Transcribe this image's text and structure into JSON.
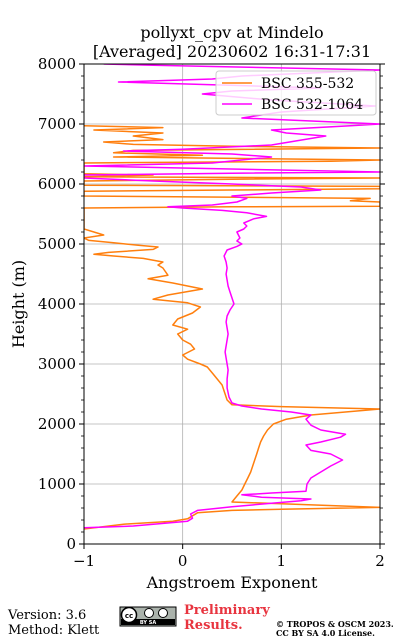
{
  "chart_data": {
    "type": "line",
    "title": [
      "pollyxt_cpv at Mindelo",
      "[Averaged] 20230602 16:31-17:31"
    ],
    "xlabel": "Angstroem Exponent",
    "ylabel": "Height (m)",
    "xlim": [
      -1,
      2
    ],
    "ylim": [
      0,
      8000
    ],
    "xticks": [
      -1,
      0,
      1,
      2
    ],
    "xtick_labels": [
      "−1",
      "0",
      "1",
      "2"
    ],
    "yticks": [
      0,
      1000,
      2000,
      3000,
      4000,
      5000,
      6000,
      7000,
      8000
    ],
    "ytick_labels": [
      "0",
      "1000",
      "2000",
      "3000",
      "4000",
      "5000",
      "6000",
      "7000",
      "8000"
    ],
    "grid": true,
    "legend_position": "top-right",
    "series": [
      {
        "name": "BSC 355-532",
        "color": "#ff7f0e",
        "points": [
          [
            -1.0,
            250
          ],
          [
            -0.6,
            330
          ],
          [
            -0.1,
            380
          ],
          [
            0.05,
            420
          ],
          [
            0.1,
            470
          ],
          [
            0.15,
            520
          ],
          [
            0.5,
            560
          ],
          [
            1.0,
            580
          ],
          [
            2.0,
            610
          ],
          [
            0.5,
            700
          ],
          [
            0.55,
            800
          ],
          [
            0.6,
            900
          ],
          [
            0.63,
            1000
          ],
          [
            0.66,
            1100
          ],
          [
            0.69,
            1200
          ],
          [
            0.71,
            1300
          ],
          [
            0.73,
            1400
          ],
          [
            0.75,
            1500
          ],
          [
            0.77,
            1600
          ],
          [
            0.79,
            1700
          ],
          [
            0.82,
            1800
          ],
          [
            0.86,
            1900
          ],
          [
            0.92,
            2000
          ],
          [
            1.05,
            2080
          ],
          [
            1.3,
            2150
          ],
          [
            2.0,
            2250
          ],
          [
            1.0,
            2290
          ],
          [
            0.5,
            2320
          ],
          [
            0.45,
            2400
          ],
          [
            0.42,
            2550
          ],
          [
            0.4,
            2650
          ],
          [
            0.35,
            2750
          ],
          [
            0.3,
            2850
          ],
          [
            0.25,
            2950
          ],
          [
            0.18,
            3000
          ],
          [
            0.05,
            3080
          ],
          [
            0.0,
            3150
          ],
          [
            0.12,
            3250
          ],
          [
            0.08,
            3330
          ],
          [
            0.0,
            3400
          ],
          [
            -0.05,
            3500
          ],
          [
            0.05,
            3580
          ],
          [
            -0.1,
            3650
          ],
          [
            -0.05,
            3750
          ],
          [
            0.1,
            3850
          ],
          [
            0.18,
            3950
          ],
          [
            0.05,
            4020
          ],
          [
            -0.3,
            4080
          ],
          [
            -0.15,
            4150
          ],
          [
            0.2,
            4250
          ],
          [
            -0.1,
            4350
          ],
          [
            -0.35,
            4420
          ],
          [
            -0.15,
            4480
          ],
          [
            -0.2,
            4600
          ],
          [
            -0.25,
            4650
          ],
          [
            -0.2,
            4700
          ],
          [
            -0.4,
            4760
          ],
          [
            -0.7,
            4800
          ],
          [
            -0.9,
            4830
          ],
          [
            -0.75,
            4860
          ],
          [
            -0.3,
            4910
          ],
          [
            -0.25,
            4950
          ],
          [
            -0.45,
            4980
          ],
          [
            -0.7,
            5020
          ],
          [
            -0.95,
            5060
          ],
          [
            -1.0,
            5100
          ],
          [
            -0.8,
            5150
          ],
          [
            -0.9,
            5200
          ],
          [
            -1.0,
            5250
          ],
          [
            -1.0,
            5600
          ],
          [
            0.5,
            5620
          ],
          [
            2.0,
            5630
          ],
          [
            2.0,
            5700
          ],
          [
            1.7,
            5720
          ],
          [
            1.9,
            5760
          ],
          [
            -1.0,
            5800
          ],
          [
            -1.0,
            5880
          ],
          [
            0.5,
            5900
          ],
          [
            2.0,
            5920
          ],
          [
            2.0,
            5960
          ],
          [
            -1.0,
            5980
          ],
          [
            -1.0,
            6050
          ],
          [
            0.5,
            6080
          ],
          [
            2.0,
            6100
          ],
          [
            -1.0,
            6120
          ],
          [
            -0.3,
            6150
          ],
          [
            -1.0,
            6170
          ],
          [
            -1.0,
            6350
          ],
          [
            1.5,
            6380
          ],
          [
            2.0,
            6400
          ],
          [
            -0.7,
            6450
          ],
          [
            0.2,
            6480
          ],
          [
            -0.7,
            6520
          ],
          [
            -0.5,
            6560
          ],
          [
            2.0,
            6600
          ],
          [
            0.5,
            6630
          ],
          [
            -0.5,
            6660
          ],
          [
            -0.8,
            6700
          ],
          [
            -0.2,
            6740
          ],
          [
            -0.5,
            6800
          ],
          [
            -0.2,
            6850
          ],
          [
            -0.9,
            6900
          ],
          [
            -0.2,
            6940
          ],
          [
            -1.0,
            6970
          ]
        ]
      },
      {
        "name": "BSC 532-1064",
        "color": "#ff00ff",
        "points": [
          [
            -1.0,
            270
          ],
          [
            -0.5,
            300
          ],
          [
            0.05,
            380
          ],
          [
            0.1,
            430
          ],
          [
            0.08,
            500
          ],
          [
            0.15,
            560
          ],
          [
            0.5,
            620
          ],
          [
            0.9,
            680
          ],
          [
            1.2,
            720
          ],
          [
            1.3,
            750
          ],
          [
            0.8,
            780
          ],
          [
            0.6,
            820
          ],
          [
            0.9,
            850
          ],
          [
            1.25,
            880
          ],
          [
            1.26,
            1000
          ],
          [
            1.3,
            1100
          ],
          [
            1.4,
            1200
          ],
          [
            1.5,
            1300
          ],
          [
            1.62,
            1400
          ],
          [
            1.5,
            1500
          ],
          [
            1.3,
            1560
          ],
          [
            1.25,
            1650
          ],
          [
            1.4,
            1700
          ],
          [
            1.6,
            1780
          ],
          [
            1.65,
            1830
          ],
          [
            1.4,
            1900
          ],
          [
            1.3,
            1980
          ],
          [
            1.25,
            2080
          ],
          [
            1.3,
            2150
          ],
          [
            1.1,
            2200
          ],
          [
            0.8,
            2250
          ],
          [
            0.6,
            2300
          ],
          [
            0.5,
            2350
          ],
          [
            0.47,
            2450
          ],
          [
            0.45,
            2600
          ],
          [
            0.45,
            2750
          ],
          [
            0.46,
            2900
          ],
          [
            0.45,
            3000
          ],
          [
            0.44,
            3100
          ],
          [
            0.43,
            3200
          ],
          [
            0.44,
            3300
          ],
          [
            0.45,
            3400
          ],
          [
            0.46,
            3500
          ],
          [
            0.45,
            3600
          ],
          [
            0.44,
            3700
          ],
          [
            0.45,
            3800
          ],
          [
            0.48,
            3900
          ],
          [
            0.52,
            4000
          ],
          [
            0.5,
            4100
          ],
          [
            0.48,
            4200
          ],
          [
            0.46,
            4300
          ],
          [
            0.45,
            4400
          ],
          [
            0.44,
            4500
          ],
          [
            0.45,
            4600
          ],
          [
            0.44,
            4700
          ],
          [
            0.42,
            4800
          ],
          [
            0.45,
            4900
          ],
          [
            0.55,
            4960
          ],
          [
            0.6,
            5000
          ],
          [
            0.55,
            5050
          ],
          [
            0.58,
            5100
          ],
          [
            0.55,
            5200
          ],
          [
            0.62,
            5250
          ],
          [
            0.65,
            5300
          ],
          [
            0.62,
            5350
          ],
          [
            0.72,
            5420
          ],
          [
            0.85,
            5460
          ],
          [
            0.65,
            5520
          ],
          [
            0.4,
            5560
          ],
          [
            0.0,
            5600
          ],
          [
            -0.15,
            5620
          ],
          [
            0.3,
            5650
          ],
          [
            0.55,
            5700
          ],
          [
            0.65,
            5760
          ],
          [
            0.5,
            5800
          ],
          [
            0.9,
            5850
          ],
          [
            1.4,
            5900
          ],
          [
            1.2,
            5950
          ],
          [
            0.5,
            6000
          ],
          [
            -0.3,
            6050
          ],
          [
            -1.0,
            6100
          ],
          [
            -1.0,
            6150
          ],
          [
            0.5,
            6180
          ],
          [
            2.0,
            6200
          ],
          [
            -1.0,
            6300
          ],
          [
            0.3,
            6350
          ],
          [
            0.9,
            6450
          ],
          [
            0.5,
            6500
          ],
          [
            -0.6,
            6550
          ],
          [
            0.0,
            6580
          ],
          [
            0.9,
            6650
          ],
          [
            1.45,
            6800
          ],
          [
            1.05,
            6850
          ],
          [
            0.9,
            6900
          ],
          [
            1.7,
            6970
          ],
          [
            2.0,
            7000
          ],
          [
            0.6,
            7100
          ],
          [
            1.0,
            7200
          ],
          [
            1.95,
            7300
          ],
          [
            0.9,
            7400
          ],
          [
            0.2,
            7500
          ],
          [
            0.5,
            7550
          ],
          [
            1.4,
            7600
          ],
          [
            -0.65,
            7700
          ],
          [
            0.3,
            7750
          ],
          [
            0.6,
            7800
          ],
          [
            2.0,
            7900
          ],
          [
            -0.3,
            7980
          ],
          [
            -0.8,
            8000
          ]
        ]
      }
    ]
  },
  "footer": {
    "version": "Version: 3.6",
    "method": "Method: Klett",
    "preliminary_line1": "Preliminary",
    "preliminary_line2": "Results.",
    "copyright": "© TROPOS & OSCM 2023.",
    "license": "CC BY SA 4.0 License.",
    "badge_text": "BY   SA"
  },
  "colors": {
    "preliminary": "#e8343f",
    "grid": "#b0b0b0"
  },
  "icons": {
    "license_badge": "cc-by-sa-icon"
  }
}
